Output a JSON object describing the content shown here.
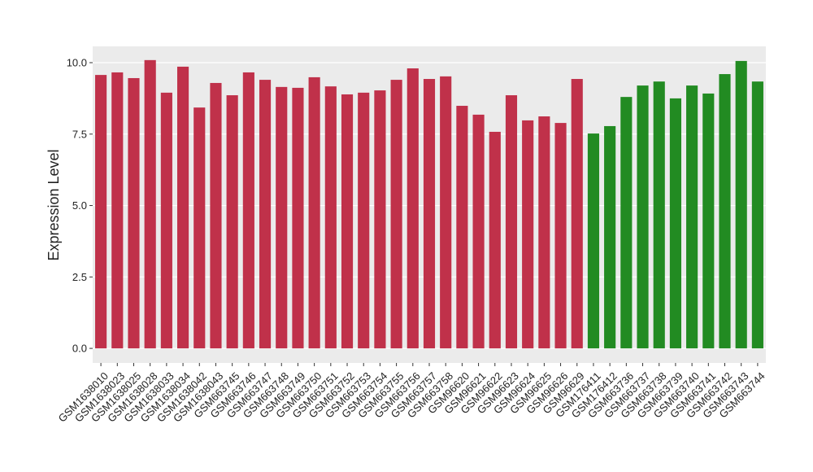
{
  "chart_data": {
    "type": "bar",
    "y_label": "Expression Level",
    "categories": [
      "GSM1638010",
      "GSM1638023",
      "GSM1638025",
      "GSM1638028",
      "GSM1638033",
      "GSM1638034",
      "GSM1638042",
      "GSM1638043",
      "GSM663745",
      "GSM663746",
      "GSM663747",
      "GSM663748",
      "GSM663749",
      "GSM663750",
      "GSM663751",
      "GSM663752",
      "GSM663753",
      "GSM663754",
      "GSM663755",
      "GSM663756",
      "GSM663757",
      "GSM663758",
      "GSM96620",
      "GSM96621",
      "GSM96622",
      "GSM96623",
      "GSM96624",
      "GSM96625",
      "GSM96626",
      "GSM96629",
      "GSM176411",
      "GSM176412",
      "GSM663736",
      "GSM663737",
      "GSM663738",
      "GSM663739",
      "GSM663740",
      "GSM663741",
      "GSM663742",
      "GSM663743",
      "GSM663744"
    ],
    "values": [
      9.57,
      9.66,
      9.46,
      10.09,
      8.95,
      9.86,
      8.43,
      9.29,
      8.86,
      9.66,
      9.4,
      9.15,
      9.12,
      9.49,
      9.17,
      8.89,
      8.95,
      9.03,
      9.4,
      9.8,
      9.43,
      9.52,
      8.49,
      8.18,
      7.58,
      8.86,
      7.98,
      8.12,
      7.89,
      9.43,
      7.52,
      7.78,
      8.8,
      9.2,
      9.34,
      8.75,
      9.2,
      8.92,
      9.6,
      10.06,
      9.34
    ],
    "colors": [
      "#c0314a",
      "#c0314a",
      "#c0314a",
      "#c0314a",
      "#c0314a",
      "#c0314a",
      "#c0314a",
      "#c0314a",
      "#c0314a",
      "#c0314a",
      "#c0314a",
      "#c0314a",
      "#c0314a",
      "#c0314a",
      "#c0314a",
      "#c0314a",
      "#c0314a",
      "#c0314a",
      "#c0314a",
      "#c0314a",
      "#c0314a",
      "#c0314a",
      "#c0314a",
      "#c0314a",
      "#c0314a",
      "#c0314a",
      "#c0314a",
      "#c0314a",
      "#c0314a",
      "#c0314a",
      "#228b22",
      "#228b22",
      "#228b22",
      "#228b22",
      "#228b22",
      "#228b22",
      "#228b22",
      "#228b22",
      "#228b22",
      "#228b22",
      "#228b22"
    ],
    "ylim": [
      -0.51,
      10.57
    ],
    "yticks": [
      {
        "value": 0,
        "label": "0.0"
      },
      2.5,
      {
        "value": 5,
        "label": "5.0"
      },
      7.5,
      {
        "value": 10,
        "label": "10.0"
      }
    ],
    "grid": true
  }
}
